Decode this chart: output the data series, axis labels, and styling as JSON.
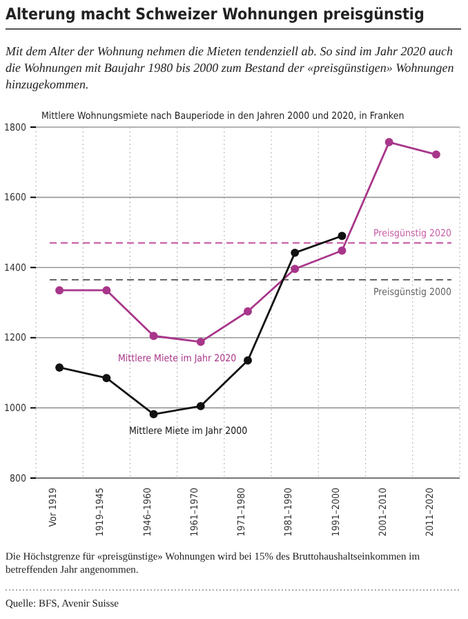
{
  "chart_data": {
    "type": "line",
    "title": "Alterung macht Schweizer Wohnungen preisgünstig",
    "subtitle": "Mit dem Alter der Wohnung nehmen die Mieten tendenziell ab. So sind im Jahr 2020 auch die Wohnungen mit Baujahr 1980 bis 2000 zum Bestand der «preisgünstigen» Wohnungen hinzugekommen.",
    "ylabel": "Mittlere Wohnungsmiete nach Bauperiode in den Jahren 2000 und 2020, in Franken",
    "categories": [
      "Vor 1919",
      "1919–1945",
      "1946–1960",
      "1961–1970",
      "1971–1980",
      "1981–1990",
      "1991–2000",
      "2001–2010",
      "2011–2020"
    ],
    "series": [
      {
        "name": "Mittlere Miete im Jahr 2020",
        "color": "#a8368a",
        "values": [
          1335,
          1335,
          1205,
          1188,
          1275,
          1396,
          1448,
          1757,
          1722
        ]
      },
      {
        "name": "Mittlere Miete im Jahr 2000",
        "color": "#111111",
        "values": [
          1115,
          1085,
          982,
          1005,
          1135,
          1442,
          1490,
          null,
          null
        ]
      }
    ],
    "ylim": [
      800,
      1800
    ],
    "yticks": [
      800,
      1000,
      1200,
      1400,
      1600,
      1800
    ],
    "grid": true,
    "marker": "circle",
    "line_style": "solid",
    "legend": false,
    "ref_lines": [
      {
        "axis": "y",
        "value": 1470,
        "label": "Preisgünstig 2020",
        "color": "#c75fa6",
        "line_style": "dashed"
      },
      {
        "axis": "y",
        "value": 1365,
        "label": "Preisgünstig 2000",
        "color": "#666666",
        "line_style": "dashed"
      }
    ],
    "annotations": [
      "Die Höchstgrenze für «preisgünstige» Wohnungen wird bei 15% des Bruttohaushaltseinkommen im betreffenden Jahr angenommen.",
      "Quelle: BFS, Avenir Suisse"
    ]
  }
}
